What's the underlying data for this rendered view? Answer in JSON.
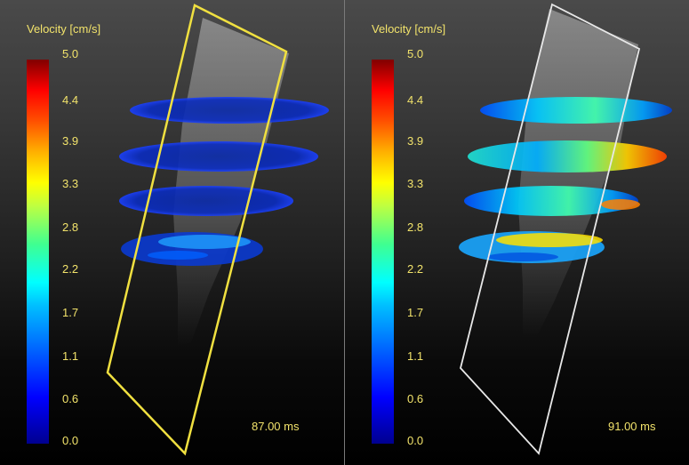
{
  "panels": [
    {
      "colorbar_title": "Velocity [cm/s]",
      "ticks": [
        "5.0",
        "4.4",
        "3.9",
        "3.3",
        "2.8",
        "2.2",
        "1.7",
        "1.1",
        "0.6",
        "0.0"
      ],
      "time": "87.00 ms",
      "plane_color": "#f0e040"
    },
    {
      "colorbar_title": "Velocity [cm/s]",
      "ticks": [
        "5.0",
        "4.4",
        "3.9",
        "3.3",
        "2.8",
        "2.2",
        "1.7",
        "1.1",
        "0.6",
        "0.0"
      ],
      "time": "91.00 ms",
      "plane_color": "#e8e8e8"
    }
  ],
  "colors": {
    "label_text": "#f2e36b"
  }
}
